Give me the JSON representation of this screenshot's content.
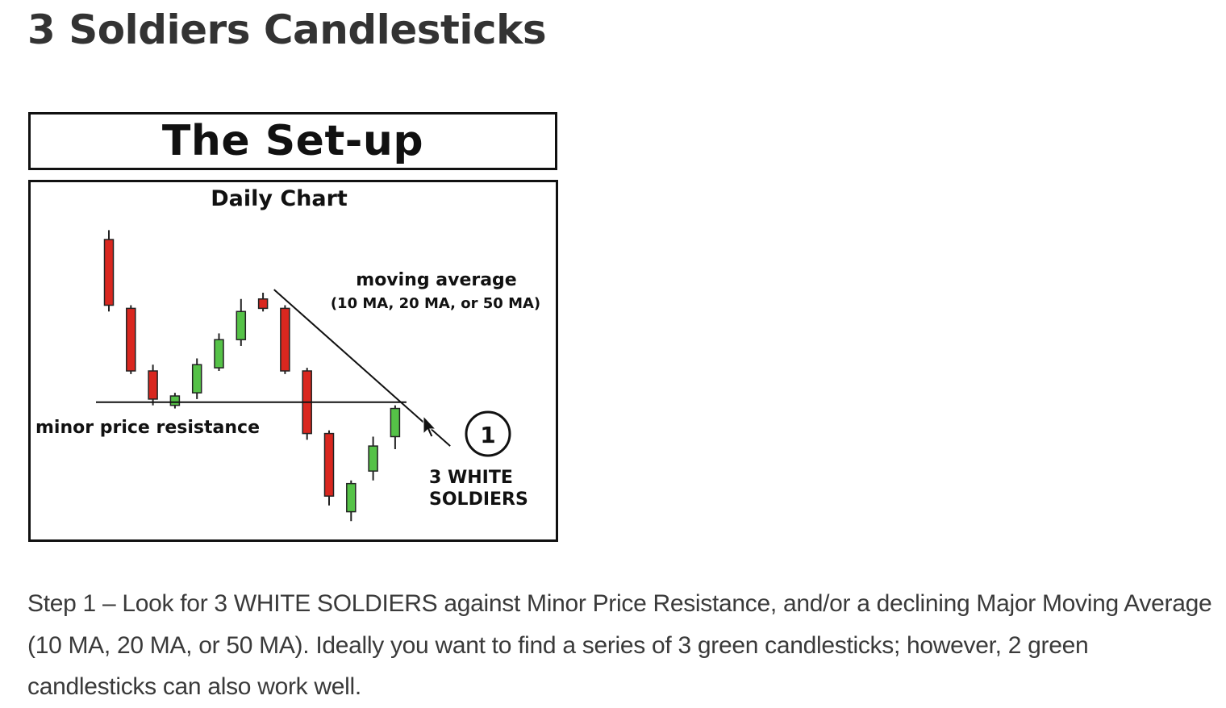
{
  "page": {
    "title": "3 Soldiers Candlesticks",
    "description": "Step 1 – Look for 3 WHITE SOLDIERS against Minor Price Resistance, and/or a declining Major Moving Average (10 MA, 20 MA, or 50 MA). Ideally you want to find a series of 3 green candlesticks; however, 2 green candlesticks can also work well."
  },
  "figure": {
    "banner_title": "The Set-up",
    "chart_title": "Daily Chart",
    "annotations": {
      "moving_average_title": "moving average",
      "moving_average_detail": "(10 MA, 20 MA, or 50 MA)",
      "resistance_label": "minor price resistance",
      "step_marker": "1",
      "soldiers_line1": "3 WHITE",
      "soldiers_line2": "SOLDIERS"
    }
  },
  "colors": {
    "bullish": "#55c247",
    "bearish": "#d9271f",
    "ink": "#111111"
  },
  "chart_data": {
    "type": "candlestick",
    "title": "Daily Chart",
    "ylim": [
      0,
      100
    ],
    "candles": [
      {
        "open": 92,
        "close": 71,
        "high": 95,
        "low": 69,
        "direction": "down"
      },
      {
        "open": 70,
        "close": 50,
        "high": 71,
        "low": 49,
        "direction": "down"
      },
      {
        "open": 50,
        "close": 41,
        "high": 52,
        "low": 39,
        "direction": "down"
      },
      {
        "open": 39,
        "close": 42,
        "high": 43,
        "low": 38,
        "direction": "up"
      },
      {
        "open": 43,
        "close": 52,
        "high": 54,
        "low": 41,
        "direction": "up"
      },
      {
        "open": 51,
        "close": 60,
        "high": 62,
        "low": 50,
        "direction": "up"
      },
      {
        "open": 60,
        "close": 69,
        "high": 73,
        "low": 58,
        "direction": "up"
      },
      {
        "open": 73,
        "close": 70,
        "high": 75,
        "low": 69,
        "direction": "down"
      },
      {
        "open": 70,
        "close": 50,
        "high": 71,
        "low": 49,
        "direction": "down"
      },
      {
        "open": 50,
        "close": 30,
        "high": 51,
        "low": 28,
        "direction": "down"
      },
      {
        "open": 30,
        "close": 10,
        "high": 31,
        "low": 7,
        "direction": "down"
      },
      {
        "open": 5,
        "close": 14,
        "high": 15,
        "low": 2,
        "direction": "up"
      },
      {
        "open": 18,
        "close": 26,
        "high": 29,
        "low": 15,
        "direction": "up"
      },
      {
        "open": 29,
        "close": 38,
        "high": 39,
        "low": 25,
        "direction": "up"
      }
    ],
    "resistance_level": 40,
    "moving_average_line": {
      "from": {
        "x": 7.5,
        "y": 76
      },
      "to": {
        "x": 15.5,
        "y": 26
      }
    }
  }
}
